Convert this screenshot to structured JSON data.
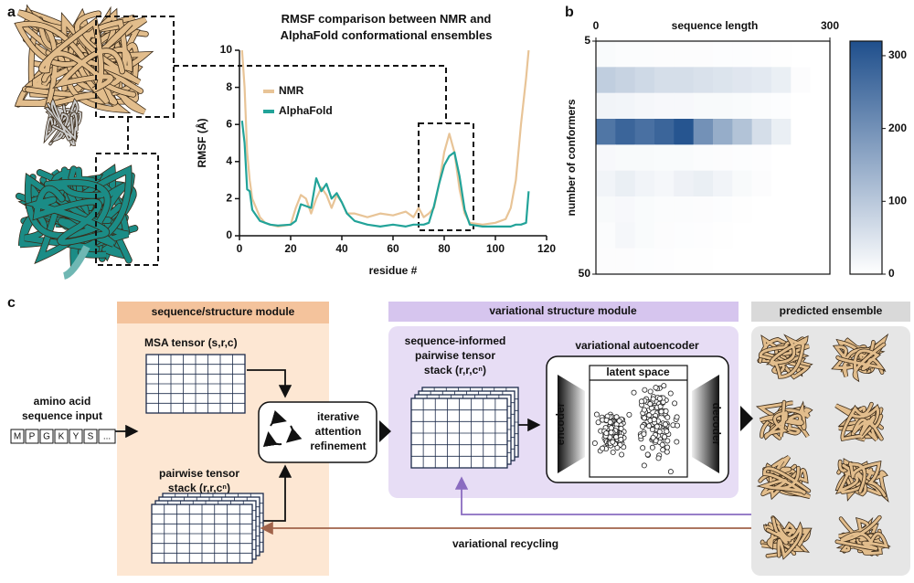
{
  "panels": [
    "a",
    "b",
    "c"
  ],
  "chart_data": [
    {
      "type": "line",
      "title": "RMSF comparison between NMR and AlphaFold conformational ensembles",
      "x_label": "residue #",
      "y_label": "RMSF (Å)",
      "x": [
        1,
        2,
        3,
        4,
        5,
        8,
        10,
        12,
        15,
        20,
        22,
        24,
        26,
        28,
        30,
        32,
        34,
        36,
        38,
        40,
        42,
        45,
        50,
        55,
        60,
        65,
        68,
        70,
        72,
        74,
        76,
        78,
        80,
        82,
        84,
        86,
        88,
        90,
        95,
        100,
        104,
        106,
        108,
        110,
        112,
        113
      ],
      "series": [
        {
          "name": "NMR",
          "color": "#e8c497",
          "values": [
            10,
            8,
            4.5,
            3,
            2,
            1,
            0.7,
            0.6,
            0.5,
            0.6,
            1.5,
            2.2,
            2,
            1.2,
            2,
            2.6,
            2.2,
            1.5,
            2.2,
            1.8,
            1.2,
            1.2,
            1,
            1.2,
            1.1,
            1.3,
            1,
            1.5,
            1,
            1.2,
            1.5,
            2.8,
            4.5,
            5.5,
            4.5,
            2.5,
            1.2,
            0.7,
            0.6,
            0.7,
            0.9,
            1.5,
            3,
            6,
            8.5,
            10
          ]
        },
        {
          "name": "AlphaFold",
          "color": "#22a399",
          "values": [
            6.2,
            5,
            2.5,
            2.4,
            1.4,
            0.8,
            0.7,
            0.6,
            0.55,
            0.6,
            0.8,
            1.7,
            1.6,
            1.5,
            3.1,
            2.4,
            2.8,
            2,
            2.3,
            1.8,
            1.2,
            0.8,
            0.6,
            0.5,
            0.6,
            0.5,
            0.6,
            0.6,
            0.6,
            0.7,
            1.6,
            2.8,
            3.8,
            4.3,
            4.5,
            3.2,
            1.4,
            0.6,
            0.5,
            0.5,
            0.5,
            0.5,
            0.6,
            0.6,
            0.7,
            2.4
          ]
        }
      ],
      "xlim": [
        0,
        120
      ],
      "xticks": [
        0,
        20,
        40,
        60,
        80,
        100,
        120
      ],
      "ylim": [
        0,
        10
      ],
      "yticks": [
        0,
        2,
        4,
        6,
        8,
        10
      ]
    },
    {
      "type": "heatmap",
      "x_label": "sequence length",
      "y_label": "number of conformers",
      "xlim": [
        0,
        300
      ],
      "xticks": [
        0,
        300
      ],
      "ylim": [
        5,
        50
      ],
      "yticks": [
        5,
        50
      ],
      "clim": [
        0,
        320
      ],
      "cticks": [
        0,
        100,
        200,
        300
      ],
      "colormap": [
        "#ffffff",
        "#1f4f8c"
      ],
      "z": [
        [
          8,
          6,
          6,
          5,
          5,
          5,
          4,
          4,
          3,
          2,
          0,
          0
        ],
        [
          90,
          80,
          70,
          60,
          60,
          55,
          50,
          45,
          40,
          30,
          5,
          0
        ],
        [
          20,
          18,
          15,
          12,
          12,
          10,
          10,
          8,
          6,
          4,
          0,
          0
        ],
        [
          250,
          280,
          260,
          280,
          310,
          200,
          150,
          110,
          60,
          30,
          0,
          0
        ],
        [
          12,
          10,
          10,
          8,
          8,
          6,
          5,
          4,
          3,
          0,
          0,
          0
        ],
        [
          20,
          30,
          20,
          15,
          25,
          30,
          20,
          10,
          5,
          0,
          0,
          0
        ],
        [
          10,
          12,
          8,
          6,
          6,
          5,
          4,
          2,
          0,
          0,
          0,
          0
        ],
        [
          6,
          15,
          8,
          5,
          4,
          3,
          2,
          0,
          0,
          0,
          0,
          0
        ],
        [
          5,
          5,
          4,
          3,
          2,
          2,
          0,
          0,
          0,
          0,
          0,
          0
        ]
      ]
    }
  ],
  "diagram": {
    "modules": [
      "sequence/structure module",
      "variational structure module",
      "predicted ensemble"
    ],
    "input_label": [
      "amino acid",
      "sequence input"
    ],
    "sequence": [
      "M",
      "P",
      "G",
      "K",
      "Y",
      "S",
      "..."
    ],
    "msa_tensor": "MSA tensor (s,r,c)",
    "pairwise_tensor": [
      "pairwise tensor",
      "stack (r,r,cⁿ)"
    ],
    "refinement": [
      "iterative",
      "attention",
      "refinement"
    ],
    "informed_tensor": [
      "sequence-informed",
      "pairwise tensor",
      "stack (r,r,cⁿ)"
    ],
    "vae": "variational autoencoder",
    "latent": "latent space",
    "encoder": "encoder",
    "decoder": "decoder",
    "recycling": "variational recycling"
  }
}
